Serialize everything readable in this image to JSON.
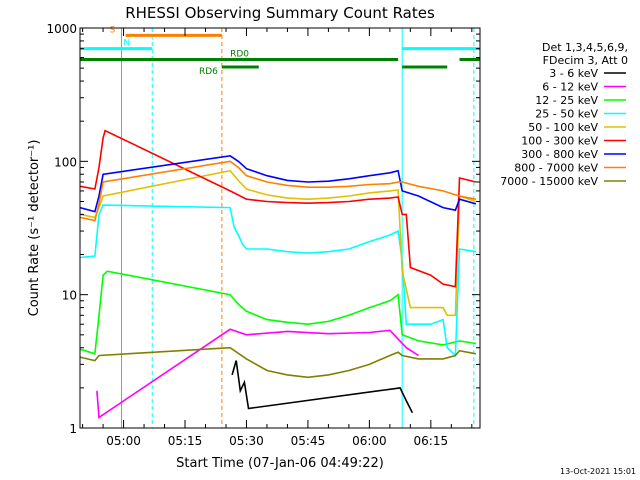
{
  "chart_data": {
    "type": "line",
    "title": "RHESSI Observing Summary Count Rates",
    "xlabel": "Start Time (07-Jan-06 04:49:22)",
    "ylabel": "Count Rate (s⁻¹ detector⁻¹)",
    "yscale": "log",
    "ylim": [
      1,
      1000
    ],
    "xlim": [
      "04:49:22",
      "06:27:00"
    ],
    "x_ticks": [
      "05:00",
      "05:15",
      "05:30",
      "05:45",
      "06:00",
      "06:15"
    ],
    "y_ticks": [
      "1",
      "10",
      "100",
      "1000"
    ],
    "legend_header": [
      "Det 1,3,4,5,6,9,",
      "FDecim 3, Att 0"
    ],
    "legend_position": "right",
    "footer_date": "13-Oct-2021 15:01",
    "flags": [
      {
        "label": "S",
        "color": "#ff8000",
        "level": 880,
        "segments": [
          [
            "05:00:30",
            "05:24:00"
          ]
        ]
      },
      {
        "label": "N",
        "color": "#00ffff",
        "level": 700,
        "segments": [
          [
            "04:49:22",
            "05:07:00"
          ],
          [
            "06:08:00",
            "06:27:00"
          ]
        ]
      },
      {
        "label": "RD0",
        "color": "#008000",
        "level": 580,
        "segments": [
          [
            "04:49:22",
            "06:07:00"
          ],
          [
            "06:22:00",
            "06:27:00"
          ]
        ]
      },
      {
        "label": "RD6",
        "color": "#008000",
        "level": 510,
        "segments": [
          [
            "05:24:00",
            "05:33:00"
          ],
          [
            "06:08:00",
            "06:19:00"
          ]
        ]
      }
    ],
    "vlines": [
      {
        "time": "04:59:30",
        "color": "#ff8000",
        "style": "solid"
      },
      {
        "time": "05:07:00",
        "color": "#00ffff",
        "style": "dashed"
      },
      {
        "time": "05:24:00",
        "color": "#ff8000",
        "style": "dashed"
      },
      {
        "time": "06:08:00",
        "color": "#00ffff",
        "style": "solid"
      },
      {
        "time": "06:25:30",
        "color": "#00ffff",
        "style": "dashed"
      }
    ],
    "series": [
      {
        "name": "3 - 6 keV",
        "color": "#000000",
        "points": [
          [
            "05:26:30",
            2.5
          ],
          [
            "05:27:30",
            3.2
          ],
          [
            "05:28:30",
            1.9
          ],
          [
            "05:29:30",
            2.2
          ],
          [
            "05:30:30",
            1.4
          ],
          [
            "06:07:30",
            2.0
          ],
          [
            "06:09:00",
            1.6
          ],
          [
            "06:10:30",
            1.3
          ]
        ]
      },
      {
        "name": "6 - 12 keV",
        "color": "#ff00ff",
        "points": [
          [
            "04:53:30",
            1.9
          ],
          [
            "04:54:00",
            1.2
          ],
          [
            "05:26:00",
            5.5
          ],
          [
            "05:30:00",
            5.0
          ],
          [
            "05:40:00",
            5.3
          ],
          [
            "05:50:00",
            5.1
          ],
          [
            "06:00:00",
            5.2
          ],
          [
            "06:05:00",
            5.4
          ],
          [
            "06:09:00",
            4.0
          ],
          [
            "06:12:00",
            3.5
          ]
        ]
      },
      {
        "name": "12 - 25 keV",
        "color": "#00ff00",
        "points": [
          [
            "04:49:22",
            3.9
          ],
          [
            "04:53:00",
            3.6
          ],
          [
            "04:54:00",
            7.0
          ],
          [
            "04:55:00",
            14.0
          ],
          [
            "04:56:00",
            15.0
          ],
          [
            "05:26:00",
            10.0
          ],
          [
            "05:28:00",
            8.5
          ],
          [
            "05:30:00",
            7.5
          ],
          [
            "05:35:00",
            6.5
          ],
          [
            "05:40:00",
            6.2
          ],
          [
            "05:45:00",
            6.0
          ],
          [
            "05:50:00",
            6.3
          ],
          [
            "05:55:00",
            7.0
          ],
          [
            "06:00:00",
            8.0
          ],
          [
            "06:05:00",
            9.0
          ],
          [
            "06:07:00",
            10.0
          ],
          [
            "06:08:00",
            5.0
          ],
          [
            "06:12:00",
            4.5
          ],
          [
            "06:18:00",
            4.2
          ],
          [
            "06:22:00",
            4.5
          ],
          [
            "06:26:00",
            4.3
          ]
        ]
      },
      {
        "name": "25 - 50 keV",
        "color": "#00ffff",
        "points": [
          [
            "04:49:22",
            19.0
          ],
          [
            "04:53:00",
            19.5
          ],
          [
            "04:54:00",
            40.0
          ],
          [
            "04:55:00",
            47.0
          ],
          [
            "05:26:00",
            45.0
          ],
          [
            "05:27:00",
            32.0
          ],
          [
            "05:28:00",
            28.0
          ],
          [
            "05:29:00",
            24.0
          ],
          [
            "05:30:00",
            22.0
          ],
          [
            "05:35:00",
            22.0
          ],
          [
            "05:40:00",
            21.0
          ],
          [
            "05:45:00",
            20.5
          ],
          [
            "05:50:00",
            21.0
          ],
          [
            "05:55:00",
            22.0
          ],
          [
            "06:00:00",
            25.0
          ],
          [
            "06:05:00",
            28.0
          ],
          [
            "06:07:00",
            30.0
          ],
          [
            "06:08:00",
            18.0
          ],
          [
            "06:09:00",
            6.0
          ],
          [
            "06:15:00",
            6.0
          ],
          [
            "06:18:00",
            6.5
          ],
          [
            "06:19:00",
            4.0
          ],
          [
            "06:21:00",
            3.5
          ],
          [
            "06:22:00",
            22.0
          ],
          [
            "06:26:00",
            21.0
          ]
        ]
      },
      {
        "name": "50 - 100 keV",
        "color": "#e0c000",
        "points": [
          [
            "04:49:22",
            40.0
          ],
          [
            "04:53:00",
            38.0
          ],
          [
            "04:54:00",
            45.0
          ],
          [
            "04:55:00",
            55.0
          ],
          [
            "05:26:00",
            85.0
          ],
          [
            "05:28:00",
            72.0
          ],
          [
            "05:30:00",
            62.0
          ],
          [
            "05:35:00",
            56.0
          ],
          [
            "05:40:00",
            53.0
          ],
          [
            "05:45:00",
            52.0
          ],
          [
            "05:50:00",
            53.0
          ],
          [
            "05:55:00",
            55.0
          ],
          [
            "06:00:00",
            58.0
          ],
          [
            "06:05:00",
            60.0
          ],
          [
            "06:07:00",
            61.0
          ],
          [
            "06:08:00",
            15.0
          ],
          [
            "06:10:00",
            8.0
          ],
          [
            "06:15:00",
            8.0
          ],
          [
            "06:18:00",
            8.0
          ],
          [
            "06:19:00",
            7.0
          ],
          [
            "06:21:00",
            7.0
          ],
          [
            "06:22:00",
            55.0
          ],
          [
            "06:26:00",
            50.0
          ]
        ]
      },
      {
        "name": "100 - 300 keV",
        "color": "#ff0000",
        "points": [
          [
            "04:49:22",
            65.0
          ],
          [
            "04:53:00",
            62.0
          ],
          [
            "04:54:00",
            90.0
          ],
          [
            "04:55:00",
            150.0
          ],
          [
            "04:55:30",
            170.0
          ],
          [
            "05:26:00",
            60.0
          ],
          [
            "05:30:00",
            52.0
          ],
          [
            "05:35:00",
            50.0
          ],
          [
            "05:40:00",
            49.0
          ],
          [
            "05:45:00",
            48.5
          ],
          [
            "05:50:00",
            49.0
          ],
          [
            "05:55:00",
            50.0
          ],
          [
            "06:00:00",
            52.0
          ],
          [
            "06:05:00",
            53.0
          ],
          [
            "06:07:00",
            54.0
          ],
          [
            "06:08:00",
            40.0
          ],
          [
            "06:09:00",
            40.0
          ],
          [
            "06:10:00",
            16.0
          ],
          [
            "06:15:00",
            14.0
          ],
          [
            "06:18:00",
            12.0
          ],
          [
            "06:21:00",
            11.5
          ],
          [
            "06:22:00",
            75.0
          ],
          [
            "06:26:00",
            70.0
          ]
        ]
      },
      {
        "name": "300 - 800 keV",
        "color": "#0000ff",
        "points": [
          [
            "04:49:22",
            45.0
          ],
          [
            "04:53:00",
            42.0
          ],
          [
            "04:54:00",
            55.0
          ],
          [
            "04:55:00",
            80.0
          ],
          [
            "05:26:00",
            110.0
          ],
          [
            "05:28:00",
            100.0
          ],
          [
            "05:30:00",
            88.0
          ],
          [
            "05:35:00",
            78.0
          ],
          [
            "05:40:00",
            72.0
          ],
          [
            "05:45:00",
            70.0
          ],
          [
            "05:50:00",
            71.0
          ],
          [
            "05:55:00",
            74.0
          ],
          [
            "06:00:00",
            78.0
          ],
          [
            "06:05:00",
            82.0
          ],
          [
            "06:07:00",
            85.0
          ],
          [
            "06:08:00",
            60.0
          ],
          [
            "06:12:00",
            55.0
          ],
          [
            "06:18:00",
            45.0
          ],
          [
            "06:21:00",
            43.0
          ],
          [
            "06:22:00",
            52.0
          ],
          [
            "06:26:00",
            48.0
          ]
        ]
      },
      {
        "name": "800 - 7000 keV",
        "color": "#ff8000",
        "points": [
          [
            "04:49:22",
            38.0
          ],
          [
            "04:53:00",
            36.0
          ],
          [
            "04:54:00",
            48.0
          ],
          [
            "04:55:00",
            70.0
          ],
          [
            "05:26:00",
            100.0
          ],
          [
            "05:28:00",
            90.0
          ],
          [
            "05:30:00",
            78.0
          ],
          [
            "05:35:00",
            70.0
          ],
          [
            "05:40:00",
            66.0
          ],
          [
            "05:45:00",
            64.0
          ],
          [
            "05:50:00",
            64.0
          ],
          [
            "05:55:00",
            65.0
          ],
          [
            "06:00:00",
            67.0
          ],
          [
            "06:05:00",
            68.0
          ],
          [
            "06:07:00",
            70.0
          ],
          [
            "06:08:00",
            70.0
          ],
          [
            "06:12:00",
            65.0
          ],
          [
            "06:18:00",
            60.0
          ],
          [
            "06:21:00",
            56.0
          ],
          [
            "06:22:00",
            55.0
          ],
          [
            "06:26:00",
            52.0
          ]
        ]
      },
      {
        "name": "7000 - 15000 keV",
        "color": "#808000",
        "points": [
          [
            "04:49:22",
            3.4
          ],
          [
            "04:53:00",
            3.2
          ],
          [
            "04:54:00",
            3.5
          ],
          [
            "05:26:00",
            4.0
          ],
          [
            "05:30:00",
            3.3
          ],
          [
            "05:35:00",
            2.7
          ],
          [
            "05:40:00",
            2.5
          ],
          [
            "05:45:00",
            2.4
          ],
          [
            "05:50:00",
            2.5
          ],
          [
            "05:55:00",
            2.7
          ],
          [
            "06:00:00",
            3.0
          ],
          [
            "06:05:00",
            3.5
          ],
          [
            "06:07:00",
            3.7
          ],
          [
            "06:08:00",
            3.5
          ],
          [
            "06:12:00",
            3.3
          ],
          [
            "06:18:00",
            3.3
          ],
          [
            "06:21:00",
            3.5
          ],
          [
            "06:22:00",
            3.8
          ],
          [
            "06:26:00",
            3.6
          ]
        ]
      }
    ]
  }
}
